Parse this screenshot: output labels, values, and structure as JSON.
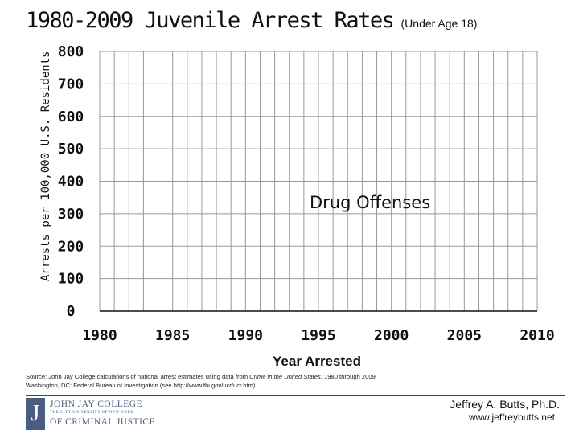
{
  "chart_data": {
    "type": "line",
    "title": "1980-2009 Juvenile Arrest Rates",
    "subtitle": "(Under Age 18)",
    "xlabel": "Year Arrested",
    "ylabel": "Arrests per 100,000 U.S. Residents",
    "xlim": [
      1980,
      2010
    ],
    "ylim": [
      0,
      800
    ],
    "x_ticks": [
      "1980",
      "1985",
      "1990",
      "1995",
      "2000",
      "2005",
      "2010"
    ],
    "y_ticks": [
      "0",
      "100",
      "200",
      "300",
      "400",
      "500",
      "600",
      "700",
      "800"
    ],
    "grid": true,
    "series": [],
    "annotation": "Drug Offenses"
  },
  "source": {
    "prefix": "Source: John Jay College calculations of national arrest estimates using data from ",
    "italic": "Crime in the United States,",
    "suffix": " 1980 through 2009.",
    "line2": "Washington, DC: Federal Bureau of Investigation (see http://www.fbi.gov/ucr/ucr.htm)."
  },
  "logo": {
    "letter": "J",
    "line1": "JOHN JAY COLLEGE",
    "line2": "THE CITY UNIVERSITY OF NEW YORK",
    "line3": "OF CRIMINAL JUSTICE"
  },
  "author": {
    "name": "Jeffrey A. Butts, Ph.D.",
    "url": "www.jeffreybutts.net"
  },
  "colors": {
    "grid": "#999999",
    "axis": "#111111",
    "logo": "#4a5d7e"
  }
}
